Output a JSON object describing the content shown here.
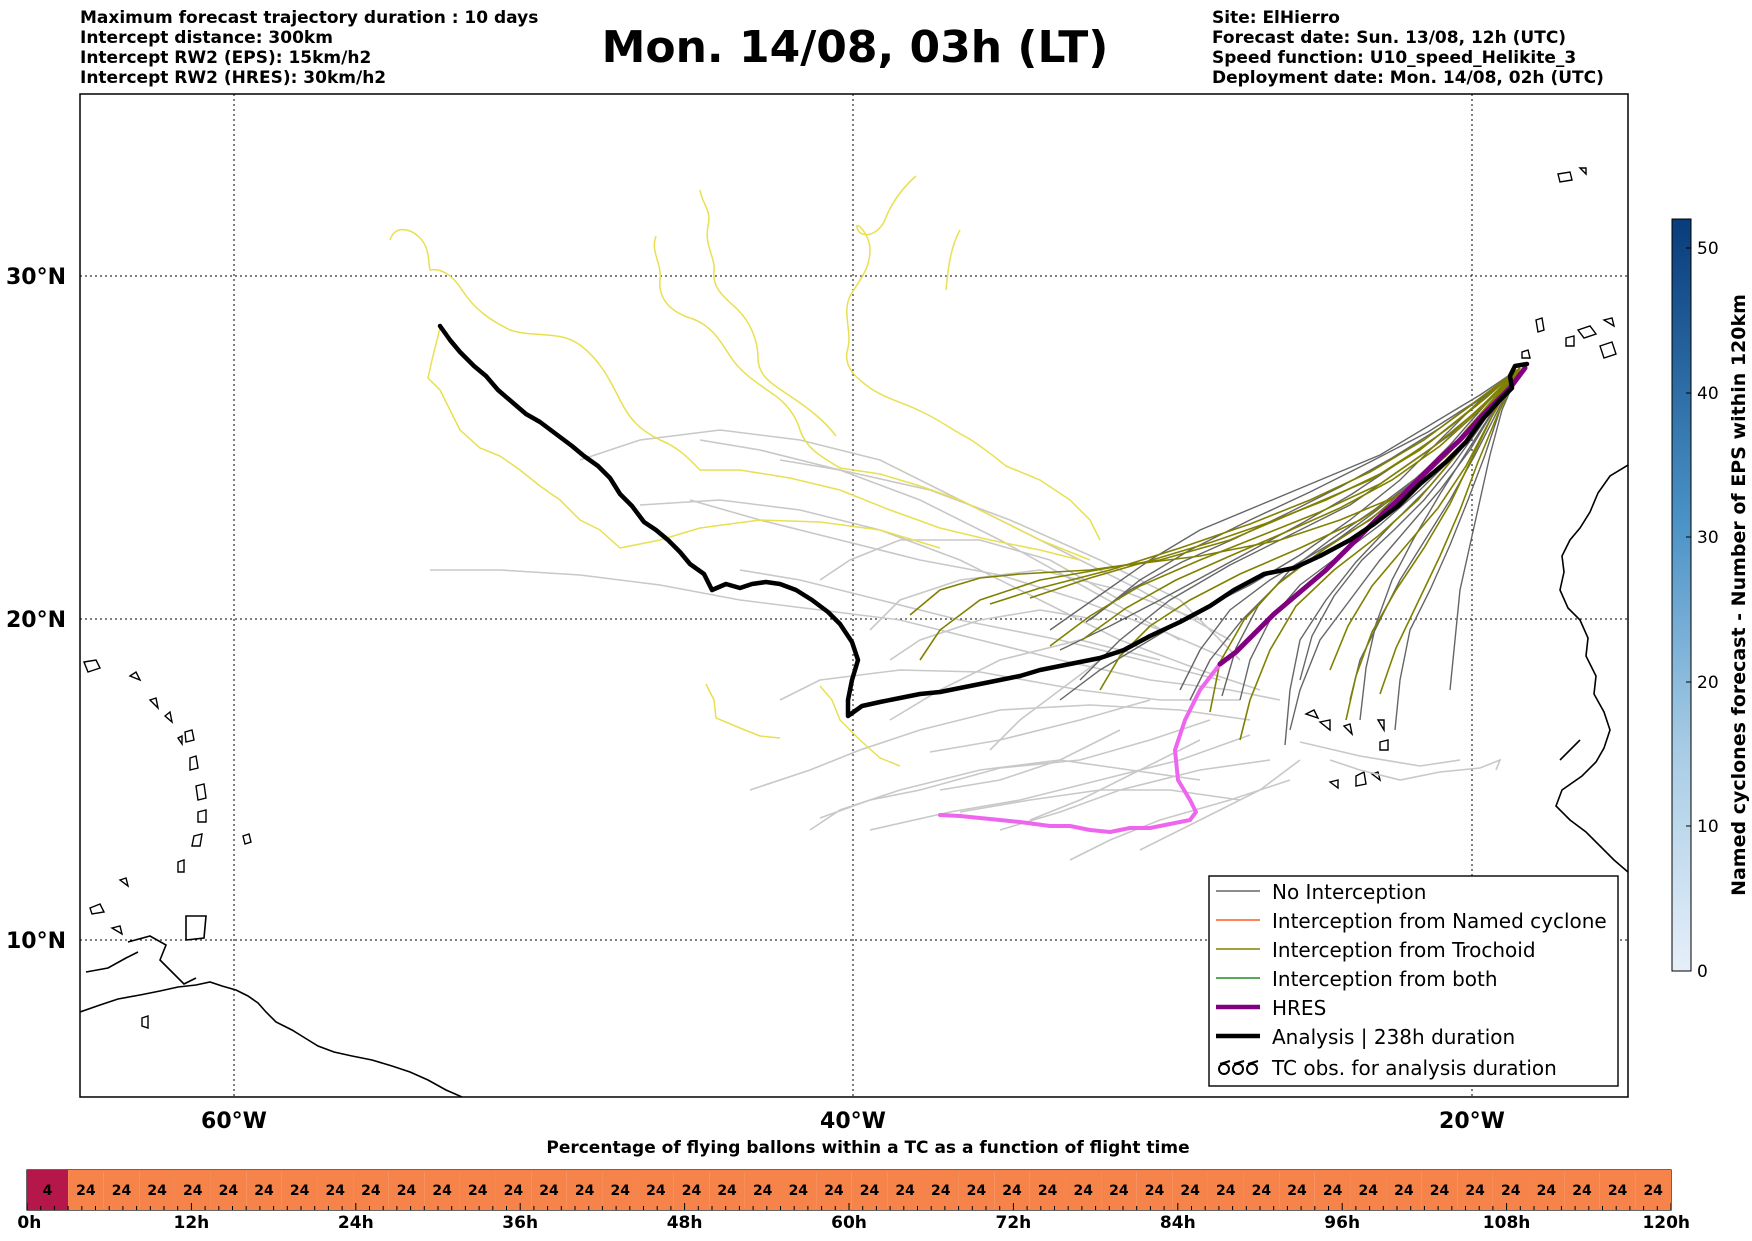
{
  "header": {
    "left_lines": [
      "Maximum forecast trajectory duration : 10 days",
      "Intercept distance: 300km",
      "Intercept RW2 (EPS):  15km/h2",
      "Intercept RW2 (HRES): 30km/h2"
    ],
    "title": "Mon. 14/08, 03h (LT)",
    "right_lines": [
      "Site: ElHierro",
      "Forecast date: Sun. 13/08, 12h (UTC)",
      "Speed function: U10_speed_Helikite_3",
      "Deployment date: Mon. 14/08, 02h (UTC)"
    ]
  },
  "map": {
    "latitude_labels": [
      "30°N",
      "20°N",
      "10°N"
    ],
    "longitude_labels": [
      "60°W",
      "40°W",
      "20°W"
    ],
    "colors": {
      "no_interception": "#c8c8c8",
      "no_interception_dark": "#666666",
      "trochoid": "#808000",
      "yellow": "#e8e050",
      "hres_magenta": "#800080",
      "hres_pink": "#ee66ee",
      "analysis": "#000000"
    }
  },
  "legend": {
    "items": [
      {
        "label": "No Interception",
        "color": "#666666",
        "style": "thin"
      },
      {
        "label": "Interception from Named cyclone",
        "color": "#ff5a1f",
        "style": "thin"
      },
      {
        "label": "Interception from Trochoid",
        "color": "#808000",
        "style": "thin"
      },
      {
        "label": "Interception from both",
        "color": "#228b22",
        "style": "thin"
      },
      {
        "label": "HRES",
        "color": "#800080",
        "style": "thick"
      },
      {
        "label": "Analysis | 238h duration",
        "color": "#000000",
        "style": "thick"
      },
      {
        "label": "TC obs. for analysis duration",
        "color": "#000000",
        "style": "symbol"
      }
    ]
  },
  "colorbar": {
    "label": "Named cyclones forecast - Number of EPS within 120km",
    "ticks": [
      "0",
      "10",
      "20",
      "30",
      "40",
      "50"
    ],
    "range": [
      0,
      52
    ],
    "color_low": "#e6eff9",
    "color_high": "#083c7a"
  },
  "timeline": {
    "title": "Percentage of flying ballons within a TC as a function of flight time",
    "first_value": "4",
    "values": [
      "24",
      "24",
      "24",
      "24",
      "24",
      "24",
      "24",
      "24",
      "24",
      "24",
      "24",
      "24",
      "24",
      "24",
      "24",
      "24",
      "24",
      "24",
      "24",
      "24",
      "24",
      "24",
      "24",
      "24",
      "24",
      "24",
      "24",
      "24",
      "24",
      "24",
      "24",
      "24",
      "24",
      "24",
      "24",
      "24",
      "24",
      "24",
      "24",
      "24",
      "24",
      "24",
      "24",
      "24",
      "24"
    ],
    "first_color": "#b5174b",
    "color": "#f5834a",
    "tick_labels": [
      "0h",
      "12h",
      "24h",
      "36h",
      "48h",
      "60h",
      "72h",
      "84h",
      "96h",
      "108h",
      "120h"
    ]
  }
}
